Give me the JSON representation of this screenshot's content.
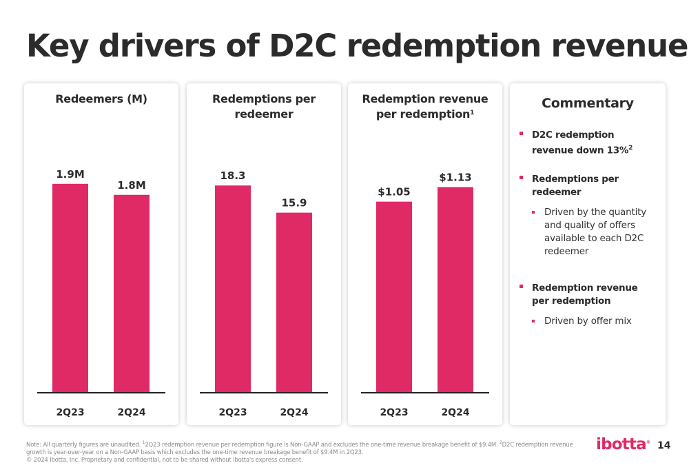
{
  "title": "Key drivers of D2C redemption revenue",
  "chart_data": [
    {
      "type": "bar",
      "title_lines": [
        "Redeemers (M)"
      ],
      "title_sup": "",
      "categories": [
        "2Q23",
        "2Q24"
      ],
      "values": [
        1.9,
        1.8
      ],
      "data_labels": [
        "1.9M",
        "1.8M"
      ],
      "ylim": [
        0,
        2.4
      ]
    },
    {
      "type": "bar",
      "title_lines": [
        "Redemptions per",
        "redeemer"
      ],
      "title_sup": "",
      "categories": [
        "2Q23",
        "2Q24"
      ],
      "values": [
        18.3,
        15.9
      ],
      "data_labels": [
        "18.3",
        "15.9"
      ],
      "ylim": [
        0,
        23.3
      ]
    },
    {
      "type": "bar",
      "title_lines": [
        "Redemption revenue",
        "per redemption"
      ],
      "title_sup": "1",
      "categories": [
        "2Q23",
        "2Q24"
      ],
      "values": [
        1.05,
        1.13
      ],
      "data_labels": [
        "$1.05",
        "$1.13"
      ],
      "ylim": [
        0,
        1.45
      ]
    }
  ],
  "commentary": {
    "title": "Commentary",
    "items": [
      {
        "head": "D2C redemption revenue down 13%",
        "head_sup": "2",
        "subs": []
      },
      {
        "head": "Redemptions per redeemer",
        "head_sup": "",
        "subs": [
          "Driven by the quantity and quality of offers available to each D2C redeemer"
        ]
      },
      {
        "head": "Redemption revenue per redemption",
        "head_sup": "",
        "subs": [
          "Driven by offer mix"
        ]
      }
    ]
  },
  "footnote": {
    "part1": "Note: All quarterly figures are unaudited. ",
    "sup1": "1",
    "part2": "2Q23 redemption revenue per redemption figure is Non-GAAP and excludes the one-time revenue breakage benefit of $9.4M. ",
    "sup2": "2",
    "part3": "D2C redemption revenue growth is year-over-year on a Non-GAAP basis which excludes the one-time revenue breakage benefit of $9.4M in 2Q23.",
    "line2": "© 2024 Ibotta, Inc. Proprietary and confidential, not to be shared without Ibotta's express consent."
  },
  "logo_text": "ibotta",
  "logo_mark": "®",
  "page_number": "14",
  "colors": {
    "bar": "#e02a66",
    "accent": "#e02a66",
    "text": "#2b2b2b"
  }
}
